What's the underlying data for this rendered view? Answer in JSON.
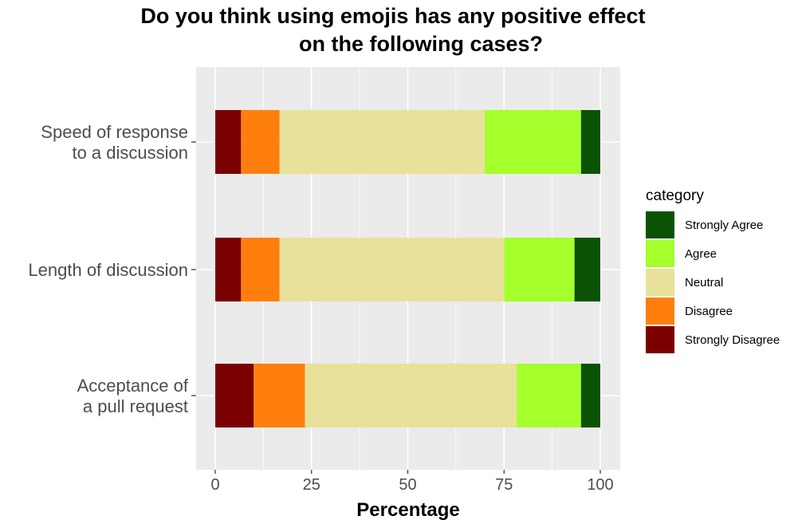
{
  "chart_data": {
    "type": "bar",
    "orientation": "horizontal",
    "stacked": true,
    "title": [
      "Do you think using emojis has any positive effect",
      "on the following cases?"
    ],
    "xlabel": "Percentage",
    "ylabel": "",
    "xlim": [
      0,
      100
    ],
    "x_ticks": [
      "0",
      "25",
      "50",
      "75",
      "100"
    ],
    "grid": true,
    "categories": [
      [
        "Speed of response",
        "to a discussion"
      ],
      [
        "Length of discussion"
      ],
      [
        "Acceptance of",
        "a pull request"
      ]
    ],
    "series": [
      {
        "name": "Strongly Disagree",
        "color": "#7b0000",
        "values": [
          6.7,
          6.7,
          10.0
        ]
      },
      {
        "name": "Disagree",
        "color": "#ff7f0e",
        "values": [
          10.0,
          10.0,
          13.3
        ]
      },
      {
        "name": "Neutral",
        "color": "#e8e19a",
        "values": [
          53.3,
          58.3,
          55.0
        ]
      },
      {
        "name": "Agree",
        "color": "#a4ff2b",
        "values": [
          25.0,
          18.3,
          16.7
        ]
      },
      {
        "name": "Strongly Agree",
        "color": "#0b5304",
        "values": [
          5.0,
          6.7,
          5.0
        ]
      }
    ],
    "legend": {
      "title": "category",
      "position": "right",
      "order": [
        "Strongly Agree",
        "Agree",
        "Neutral",
        "Disagree",
        "Strongly Disagree"
      ]
    }
  }
}
